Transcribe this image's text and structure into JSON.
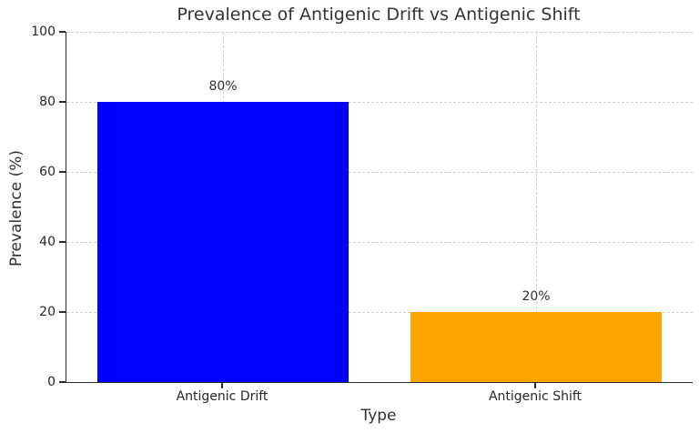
{
  "chart_data": {
    "type": "bar",
    "title": "Prevalence of Antigenic Drift vs Antigenic Shift",
    "xlabel": "Type",
    "ylabel": "Prevalence (%)",
    "categories": [
      "Antigenic Drift",
      "Antigenic Shift"
    ],
    "values": [
      80,
      20
    ],
    "value_labels": [
      "80%",
      "20%"
    ],
    "bar_colors": [
      "#0000ff",
      "#ffa500"
    ],
    "ylim": [
      0,
      100
    ],
    "yticks": [
      0,
      20,
      40,
      60,
      80,
      100
    ],
    "grid": "dashed, horizontal at y-ticks and vertical at bar centers, behind bars",
    "legend": "none",
    "spines": "left and bottom only"
  },
  "colors": {
    "bar_drift": "#0000ff",
    "bar_shift": "#ffa500",
    "grid": "#cfcfcf",
    "spine": "#2b2b2b",
    "text": "#303030",
    "background": "#ffffff"
  }
}
